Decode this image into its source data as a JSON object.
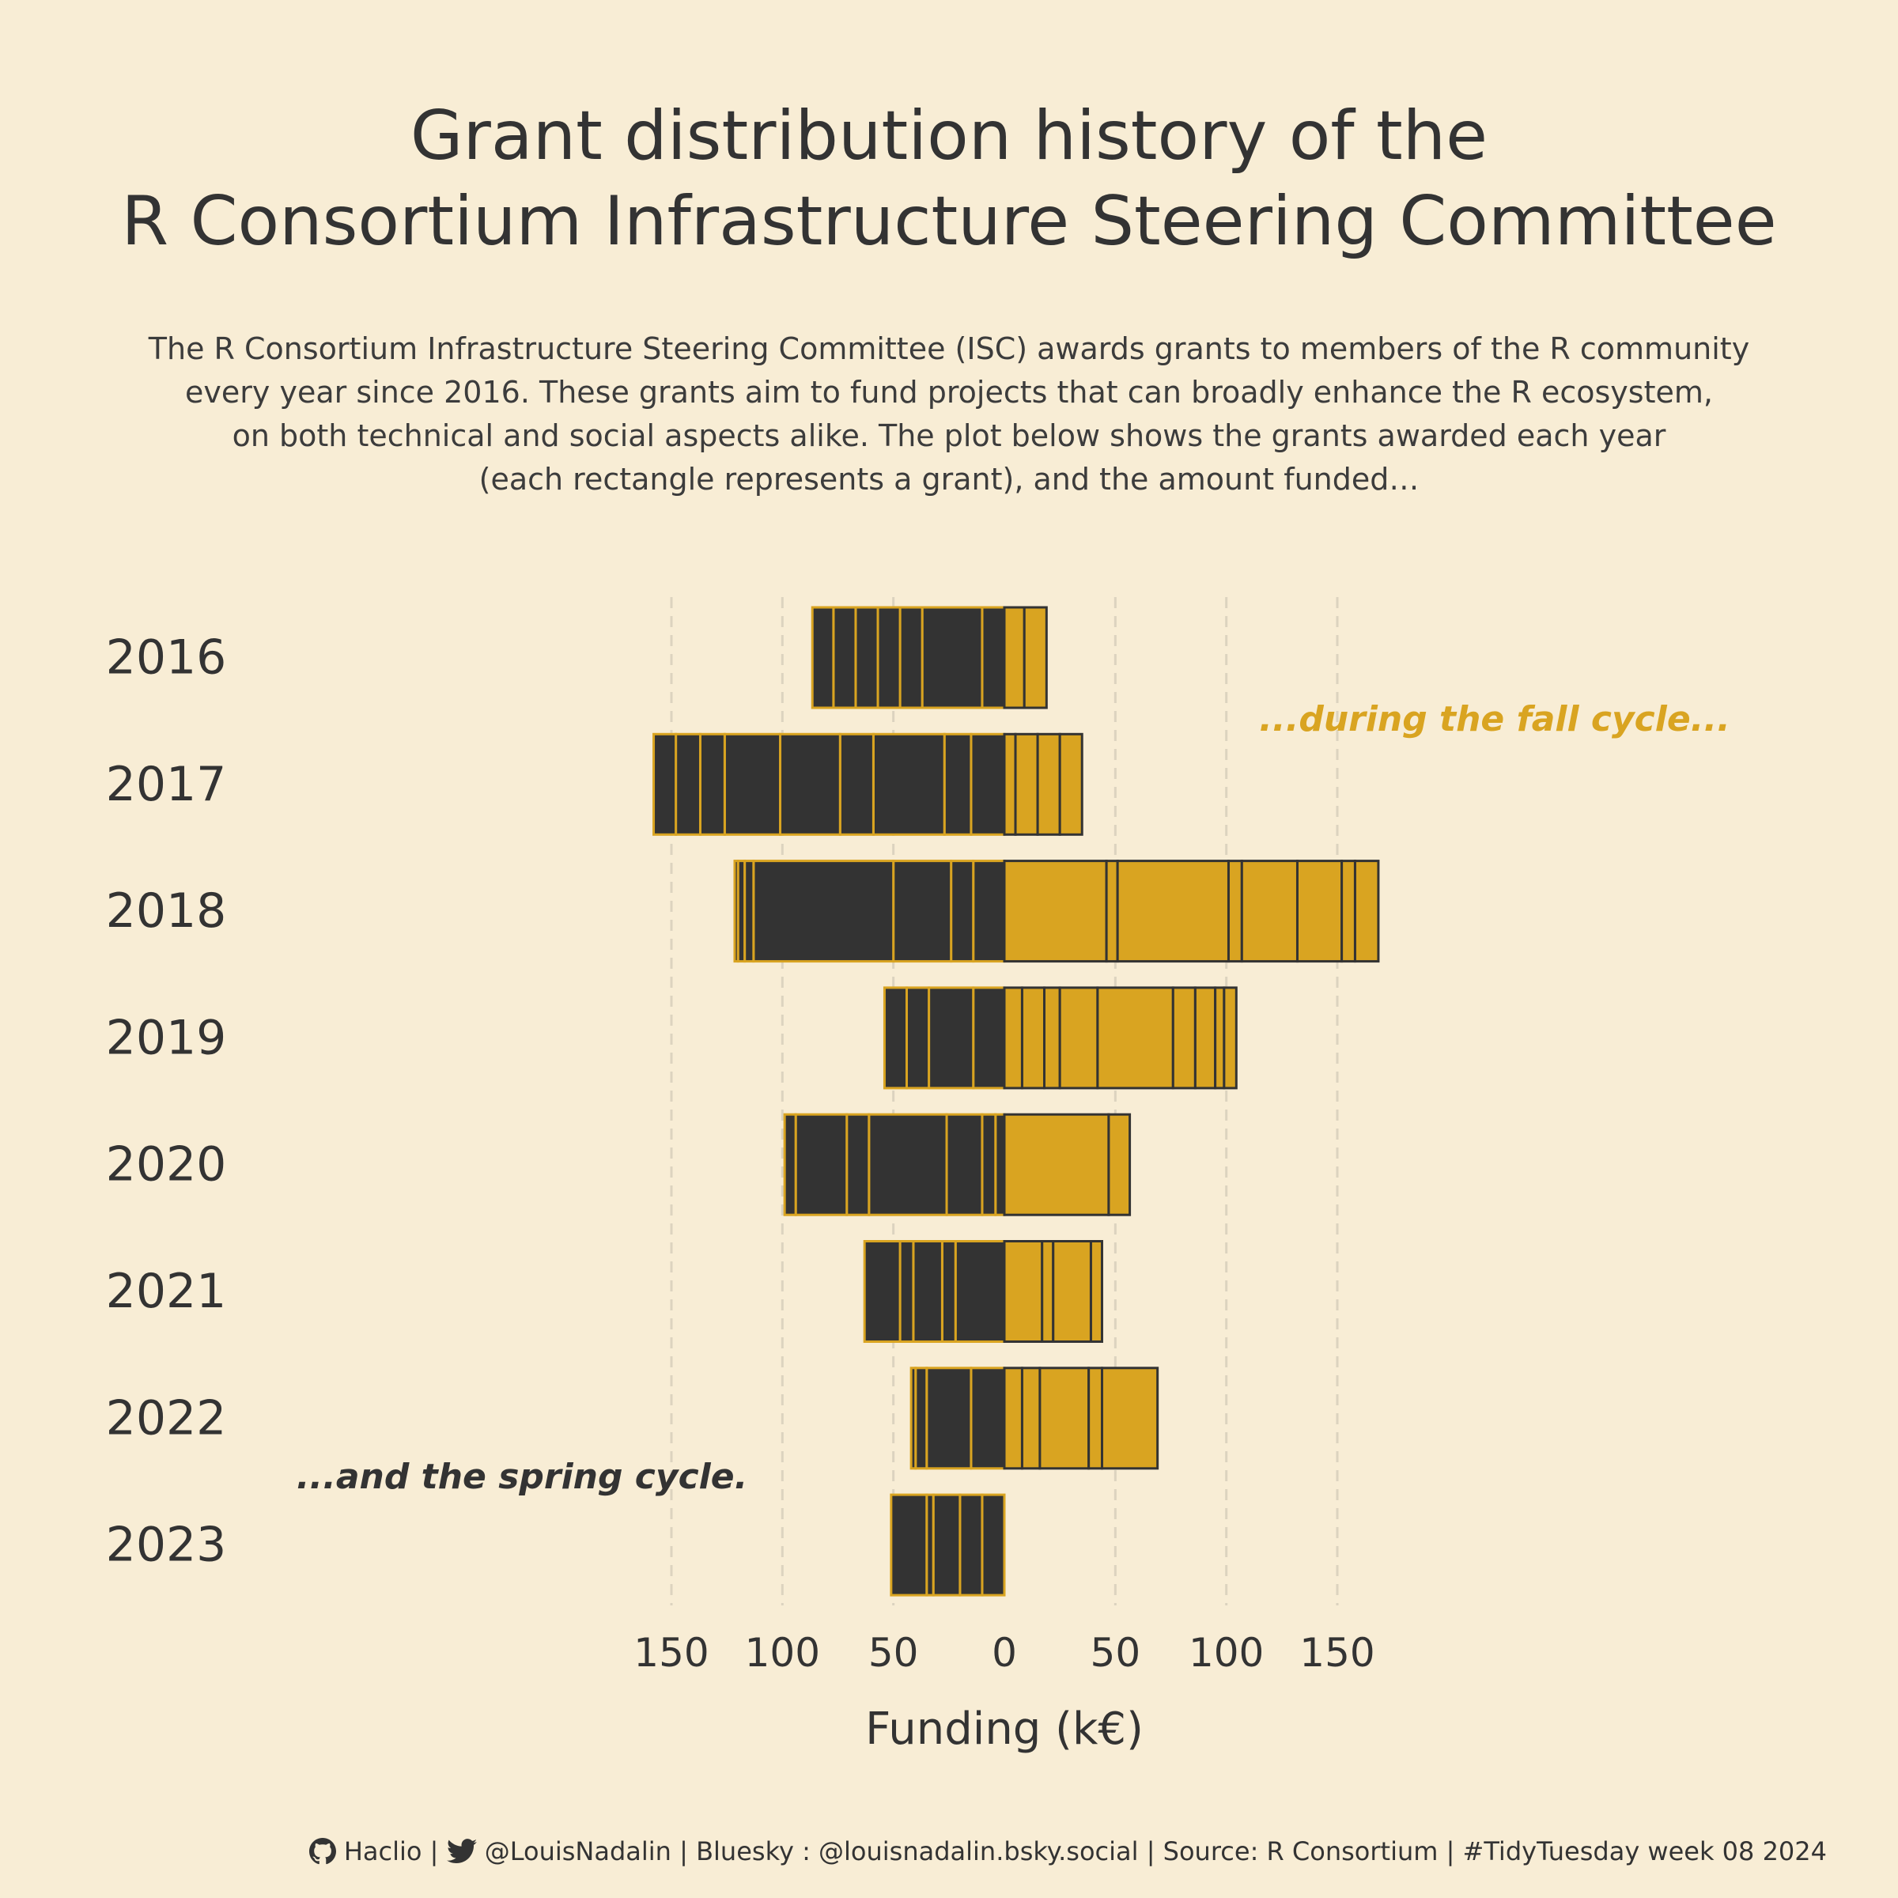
{
  "title_line1": "Grant distribution history of the",
  "title_line2": "R Consortium Infrastructure Steering Committee",
  "subtitle": [
    "The R Consortium Infrastructure Steering Committee (ISC) awards grants to members of the R community",
    "every year since 2016. These grants aim to fund projects that can broadly enhance the R ecosystem,",
    "on both technical and social aspects alike. The plot below shows the grants awarded each year",
    "(each rectangle represents a grant), and the amount funded…"
  ],
  "annotations": {
    "fall": "...during the fall cycle...",
    "spring": "...and the spring cycle."
  },
  "caption": {
    "github_icon": "github-icon",
    "twitter_icon": "twitter-icon",
    "github": "Haclio |",
    "twitter": "@LouisNadalin | Bluesky : @louisnadalin.bsky.social | Source: R Consortium | #TidyTuesday week 08 2024"
  },
  "colors": {
    "background": "#f8edd5",
    "spring": "#333333",
    "fall": "#d9a421",
    "grid": "#dcd3bf",
    "text": "#333333"
  },
  "chart_data": {
    "type": "bar",
    "orientation": "horizontal diverging stacked",
    "xlabel": "Funding (k€)",
    "ylabel": "",
    "xlim": [
      -165,
      170
    ],
    "xticks": [
      -150,
      -100,
      -50,
      0,
      50,
      100,
      150
    ],
    "xtick_labels": [
      "150",
      "100",
      "50",
      "0",
      "50",
      "100",
      "150"
    ],
    "grid": "vertical dashed",
    "categories": [
      "2016",
      "2017",
      "2018",
      "2019",
      "2020",
      "2021",
      "2022",
      "2023"
    ],
    "series": [
      {
        "name": "spring cycle",
        "grants_cumulative_from_zero": [
          [
            10,
            37,
            47,
            57,
            67,
            77,
            86.5
          ],
          [
            15,
            27,
            59,
            74,
            101,
            126,
            137,
            148,
            158
          ],
          [
            14,
            24,
            50,
            113,
            117,
            120,
            121.5
          ],
          [
            14,
            34,
            44,
            54
          ],
          [
            4,
            10,
            26,
            61,
            71,
            94,
            99
          ],
          [
            22,
            28,
            41,
            47,
            63
          ],
          [
            15,
            35,
            40,
            42
          ],
          [
            10,
            20,
            32,
            35,
            51
          ]
        ]
      },
      {
        "name": "fall cycle",
        "grants_cumulative_from_zero": [
          [
            9,
            19
          ],
          [
            5,
            15,
            25,
            35
          ],
          [
            46,
            51,
            101,
            107,
            132,
            152,
            158,
            168.5
          ],
          [
            8,
            18,
            25,
            42,
            76,
            86,
            95,
            99,
            104.5
          ],
          [
            47,
            56.5
          ],
          [
            17,
            22,
            39,
            44
          ],
          [
            8,
            16,
            38,
            44,
            69
          ]
        ]
      }
    ]
  }
}
